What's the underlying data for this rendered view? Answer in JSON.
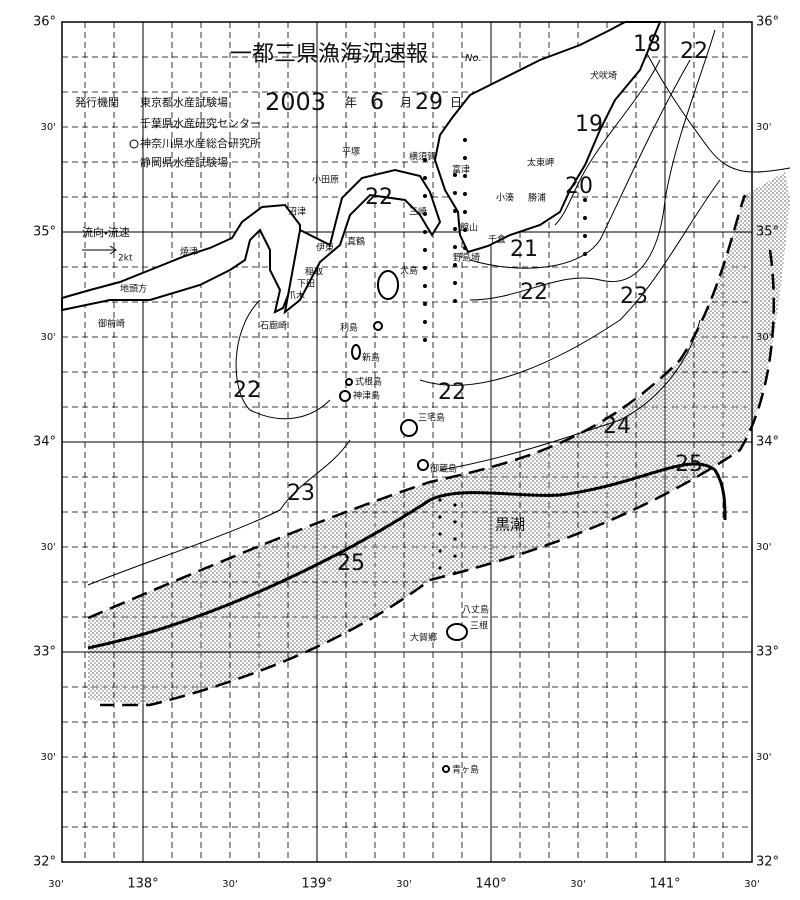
{
  "title": "一都三県漁海況速報",
  "number_label": "No.",
  "issuer": {
    "label": "発行機関",
    "agencies": [
      "東京都水産試験場",
      "千葉県水産研究センター",
      "神奈川県水産総合研究所",
      "静岡県水産試験場"
    ]
  },
  "date": {
    "year": "2003",
    "year_unit": "年",
    "month": "6",
    "month_unit": "月",
    "day": "29",
    "day_unit": "日"
  },
  "current_legend": {
    "label": "流向・流速",
    "speed": "2kt"
  },
  "latitude_labels": [
    "36°",
    "30'",
    "35°",
    "30'",
    "34°",
    "30'",
    "33°",
    "30'",
    "32°"
  ],
  "longitude_labels": [
    "30'",
    "138°",
    "30'",
    "139°",
    "30'",
    "140°",
    "30'",
    "141°",
    "30'"
  ],
  "isotherm_labels": [
    "18",
    "22",
    "19",
    "20",
    "21",
    "22",
    "23",
    "22",
    "22",
    "22",
    "24",
    "25",
    "23",
    "25"
  ],
  "current_name": "黒潮",
  "places": [
    "犬吠埼",
    "太東岬",
    "勝浦",
    "小湊",
    "千倉",
    "野島埼",
    "館山",
    "富津",
    "横須賀",
    "三崎",
    "平塚",
    "小田原",
    "真鶴",
    "沼津",
    "伊東",
    "稲取",
    "下田",
    "爪木",
    "焼津",
    "地頭方",
    "御前崎",
    "石廊崎",
    "大島",
    "利島",
    "新島",
    "式根島",
    "神津島",
    "三宅島",
    "御蔵島",
    "八丈島",
    "三根",
    "大賀郷",
    "青ヶ島"
  ]
}
